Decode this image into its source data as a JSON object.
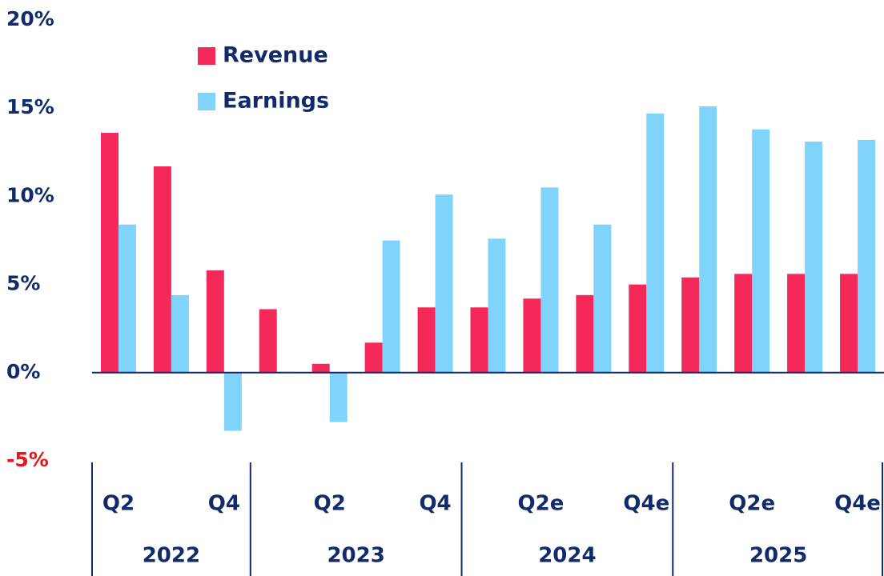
{
  "chart_data": {
    "type": "bar",
    "categories": [
      "Q2",
      null,
      "Q4",
      null,
      "Q2",
      null,
      "Q4",
      null,
      "Q2e",
      null,
      "Q4e",
      null,
      "Q2e",
      null,
      "Q4e"
    ],
    "groups": [
      {
        "label": "2022",
        "count": 3
      },
      {
        "label": "2023",
        "count": 4
      },
      {
        "label": "2024",
        "count": 4
      },
      {
        "label": "2025",
        "count": 4
      }
    ],
    "series": [
      {
        "name": "Revenue",
        "color": "#f5285a",
        "values": [
          13.6,
          11.7,
          5.8,
          3.6,
          0.5,
          1.7,
          3.7,
          3.7,
          4.2,
          4.4,
          5.0,
          5.4,
          5.6,
          5.6,
          5.6
        ]
      },
      {
        "name": "Earnings",
        "color": "#80d4fb",
        "values": [
          8.4,
          4.4,
          -3.3,
          0.05,
          -2.8,
          7.5,
          10.1,
          7.6,
          10.5,
          8.4,
          14.7,
          15.1,
          13.8,
          13.1,
          13.2
        ]
      }
    ],
    "ylim": [
      -5,
      20
    ],
    "yticks": [
      {
        "value": -5,
        "label": "-5%"
      },
      {
        "value": 0,
        "label": "0%"
      },
      {
        "value": 5,
        "label": "5%"
      },
      {
        "value": 10,
        "label": "10%"
      },
      {
        "value": 15,
        "label": "15%"
      },
      {
        "value": 20,
        "label": "20%"
      }
    ],
    "legend": "top-left"
  }
}
